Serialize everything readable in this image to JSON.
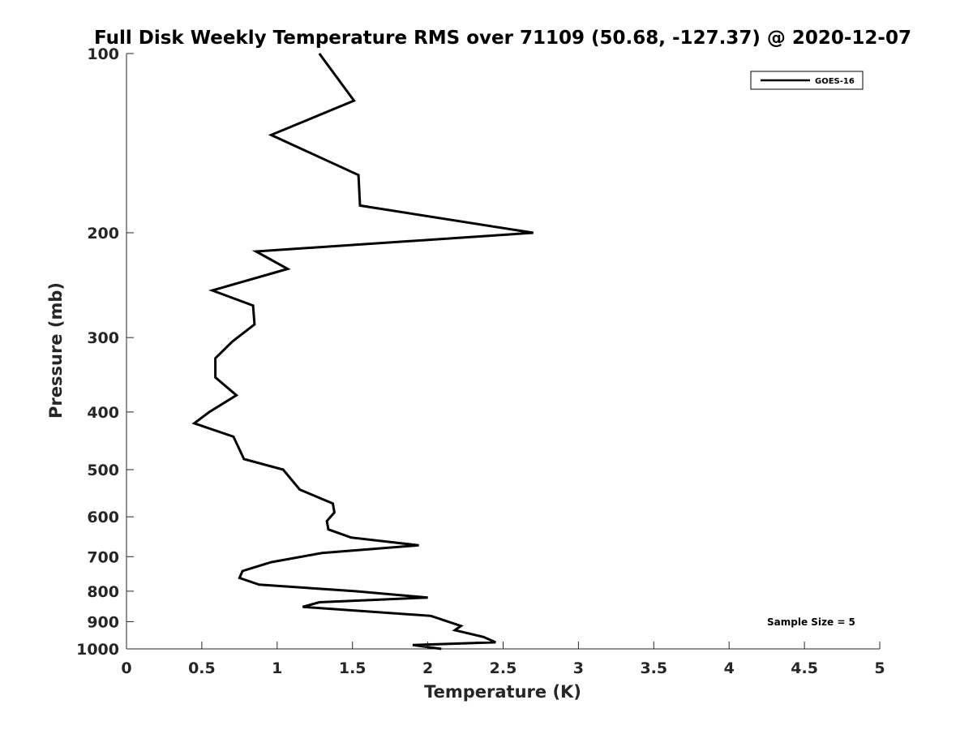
{
  "chart_data": {
    "type": "line",
    "title": "Full Disk Weekly Temperature RMS over 71109 (50.68, -127.37) @ 2020-12-07",
    "xlabel": "Temperature (K)",
    "ylabel": "Pressure (mb)",
    "xlim": [
      0,
      5
    ],
    "ylim": [
      100,
      1000
    ],
    "yscale": "log",
    "y_reversed": true,
    "grid": false,
    "legend_position": "top-right",
    "xticks": [
      "0",
      "0.5",
      "1",
      "1.5",
      "2",
      "2.5",
      "3",
      "3.5",
      "4",
      "4.5",
      "5"
    ],
    "yticks": [
      "100",
      "200",
      "300",
      "400",
      "500",
      "600",
      "700",
      "800",
      "900",
      "1000"
    ],
    "series": [
      {
        "name": "GOES-16",
        "color": "#000000",
        "points": [
          [
            1.28,
            100
          ],
          [
            1.51,
            120
          ],
          [
            0.96,
            137
          ],
          [
            1.54,
            160
          ],
          [
            1.55,
            180
          ],
          [
            2.7,
            200
          ],
          [
            0.86,
            215
          ],
          [
            1.07,
            230
          ],
          [
            0.57,
            250
          ],
          [
            0.84,
            265
          ],
          [
            0.85,
            285
          ],
          [
            0.7,
            305
          ],
          [
            0.59,
            325
          ],
          [
            0.59,
            350
          ],
          [
            0.73,
            375
          ],
          [
            0.55,
            400
          ],
          [
            0.45,
            418
          ],
          [
            0.71,
            440
          ],
          [
            0.78,
            480
          ],
          [
            1.04,
            500
          ],
          [
            1.15,
            540
          ],
          [
            1.37,
            570
          ],
          [
            1.38,
            590
          ],
          [
            1.33,
            610
          ],
          [
            1.34,
            630
          ],
          [
            1.49,
            650
          ],
          [
            1.94,
            670
          ],
          [
            1.3,
            690
          ],
          [
            0.96,
            715
          ],
          [
            0.77,
            740
          ],
          [
            0.75,
            760
          ],
          [
            0.88,
            780
          ],
          [
            1.52,
            800
          ],
          [
            2.0,
            820
          ],
          [
            1.28,
            835
          ],
          [
            1.17,
            850
          ],
          [
            2.02,
            880
          ],
          [
            2.22,
            915
          ],
          [
            2.18,
            930
          ],
          [
            2.37,
            955
          ],
          [
            2.45,
            975
          ],
          [
            1.9,
            985
          ],
          [
            2.09,
            1000
          ]
        ]
      }
    ],
    "annotations": [
      "Sample Size = 5"
    ]
  }
}
